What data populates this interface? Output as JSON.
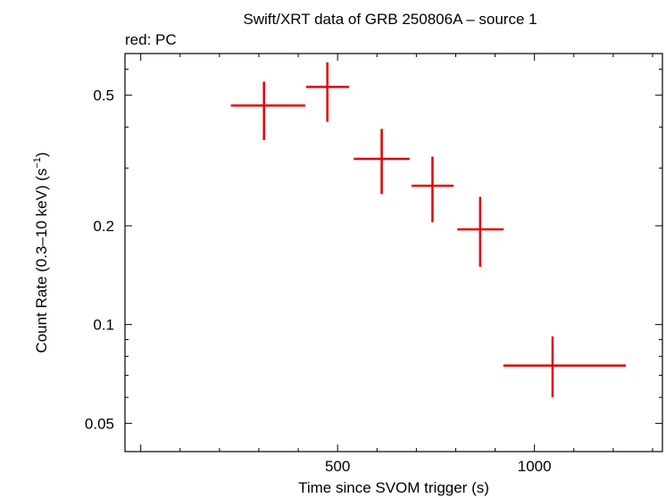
{
  "chart_data": {
    "type": "scatter",
    "title": "Swift/XRT data of GRB 250806A – source 1",
    "subtitle": "red: PC",
    "xlabel": "Time since SVOM trigger (s)",
    "ylabel": "Count Rate (0.3–10 keV) (s",
    "ylabel_sup": "−1",
    "ylabel_tail": ")",
    "x_scale": "linear",
    "y_scale": "log",
    "xlim": [
      -40,
      1325
    ],
    "ylim": [
      0.041,
      0.67
    ],
    "x_ticks": [
      {
        "value": 500,
        "label": "500"
      },
      {
        "value": 1000,
        "label": "1000"
      }
    ],
    "y_ticks": [
      {
        "value": 0.05,
        "label": "0.05"
      },
      {
        "value": 0.1,
        "label": "0.1"
      },
      {
        "value": 0.2,
        "label": "0.2"
      },
      {
        "value": 0.5,
        "label": "0.5"
      }
    ],
    "color": "#e00000",
    "series": [
      {
        "points": [
          {
            "x": 313,
            "xlo": 229,
            "xhi": 418,
            "y": 0.465,
            "ylo": 0.365,
            "yhi": 0.55
          },
          {
            "x": 474,
            "xlo": 420,
            "xhi": 529,
            "y": 0.53,
            "ylo": 0.415,
            "yhi": 0.63
          },
          {
            "x": 612,
            "xlo": 541,
            "xhi": 683,
            "y": 0.32,
            "ylo": 0.25,
            "yhi": 0.395
          },
          {
            "x": 741,
            "xlo": 688,
            "xhi": 795,
            "y": 0.265,
            "ylo": 0.205,
            "yhi": 0.325
          },
          {
            "x": 862,
            "xlo": 804,
            "xhi": 922,
            "y": 0.195,
            "ylo": 0.15,
            "yhi": 0.245
          },
          {
            "x": 1046,
            "xlo": 921,
            "xhi": 1232,
            "y": 0.075,
            "ylo": 0.06,
            "yhi": 0.092
          }
        ]
      }
    ]
  }
}
